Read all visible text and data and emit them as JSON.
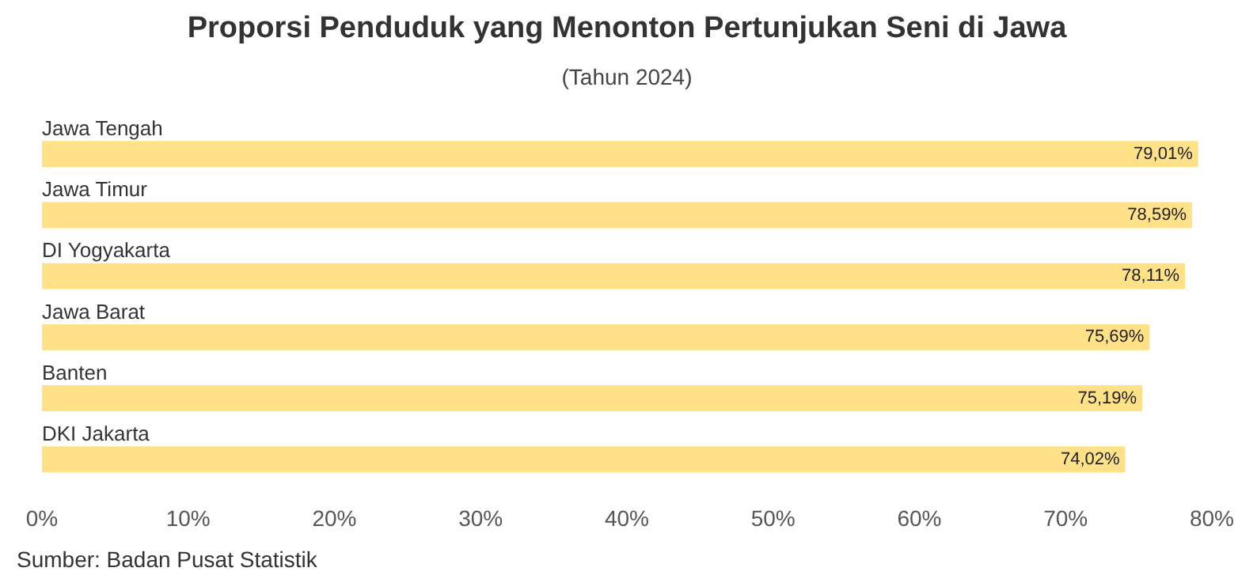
{
  "chart_data": {
    "type": "bar",
    "orientation": "horizontal",
    "title": "Proporsi Penduduk yang Menonton Pertunjukan Seni di Jawa",
    "subtitle": "(Tahun 2024)",
    "categories": [
      "Jawa Tengah",
      "Jawa Timur",
      "DI Yogyakarta",
      "Jawa Barat",
      "Banten",
      "DKI Jakarta"
    ],
    "values": [
      79.01,
      78.59,
      78.11,
      75.69,
      75.19,
      74.02
    ],
    "value_labels": [
      "79,01%",
      "78,59%",
      "78,11%",
      "75,69%",
      "75,19%",
      "74,02%"
    ],
    "color": "#ffe187",
    "xlim": [
      0,
      80
    ],
    "xticks": [
      {
        "value": 0,
        "label": "0%"
      },
      {
        "value": 10,
        "label": "10%"
      },
      {
        "value": 20,
        "label": "20%"
      },
      {
        "value": 30,
        "label": "30%"
      },
      {
        "value": 40,
        "label": "40%"
      },
      {
        "value": 50,
        "label": "50%"
      },
      {
        "value": 60,
        "label": "60%"
      },
      {
        "value": 70,
        "label": "70%"
      },
      {
        "value": 80,
        "label": "80%"
      }
    ],
    "grid": false,
    "annotations": [
      "Sumber: Badan Pusat Statistik"
    ]
  }
}
